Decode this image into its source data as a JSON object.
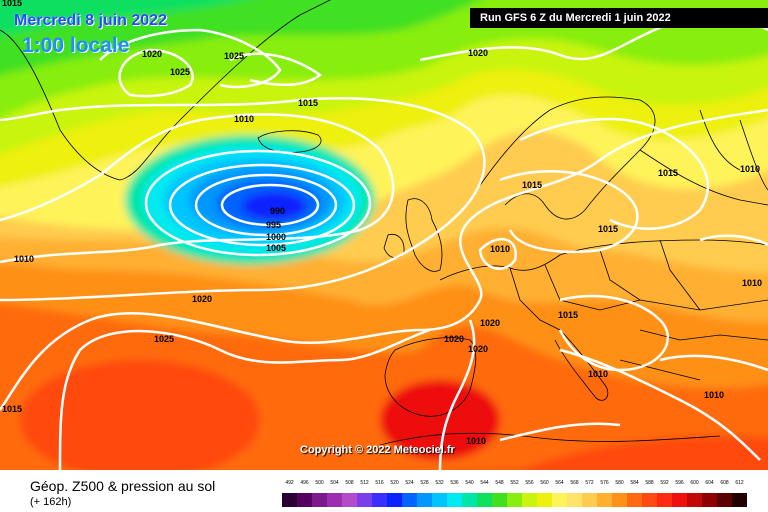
{
  "header": {
    "date": "Mercredi 8 juin 2022",
    "local_time": "1:00 locale",
    "run": "Run GFS 6 Z du Mercredi 1 juin 2022"
  },
  "copyright": "Copyright © 2022 Meteociel.fr",
  "footer": {
    "parameter": "Géop. Z500 & pression au sol",
    "lead_time": "(+ 162h)"
  },
  "isobar_labels": [
    "1015",
    "1020",
    "1025",
    "1025",
    "1010",
    "1015",
    "1020",
    "990",
    "995",
    "1000",
    "1005",
    "1010",
    "1020",
    "1025",
    "1015",
    "1010",
    "1015",
    "1015",
    "1010",
    "1020",
    "1020",
    "1020",
    "1015",
    "1010",
    "1010",
    "1010",
    "1010",
    "1015"
  ],
  "legend": {
    "values": [
      "492",
      "496",
      "500",
      "504",
      "508",
      "512",
      "516",
      "520",
      "524",
      "528",
      "532",
      "536",
      "540",
      "544",
      "548",
      "552",
      "556",
      "560",
      "564",
      "568",
      "572",
      "576",
      "580",
      "584",
      "588",
      "592",
      "596",
      "600",
      "604",
      "608",
      "612"
    ],
    "colors": [
      "#2b0033",
      "#55005f",
      "#7a1a8c",
      "#9b2fb0",
      "#b44bcc",
      "#7a3fe8",
      "#3a2fff",
      "#0a23ff",
      "#0064ff",
      "#0096ff",
      "#00c4ff",
      "#00eaf0",
      "#00e6a8",
      "#10e060",
      "#40e020",
      "#88ee10",
      "#c8f410",
      "#eef010",
      "#fff35a",
      "#ffe36a",
      "#ffcc50",
      "#ffb030",
      "#ff9018",
      "#ff6a10",
      "#ff4a10",
      "#ff2a10",
      "#ee1010",
      "#c00808",
      "#900000",
      "#5a0000",
      "#200000"
    ]
  },
  "colors": {
    "low_center": "#0a23ff",
    "isobar": "#ffffff",
    "border": "#000000"
  }
}
